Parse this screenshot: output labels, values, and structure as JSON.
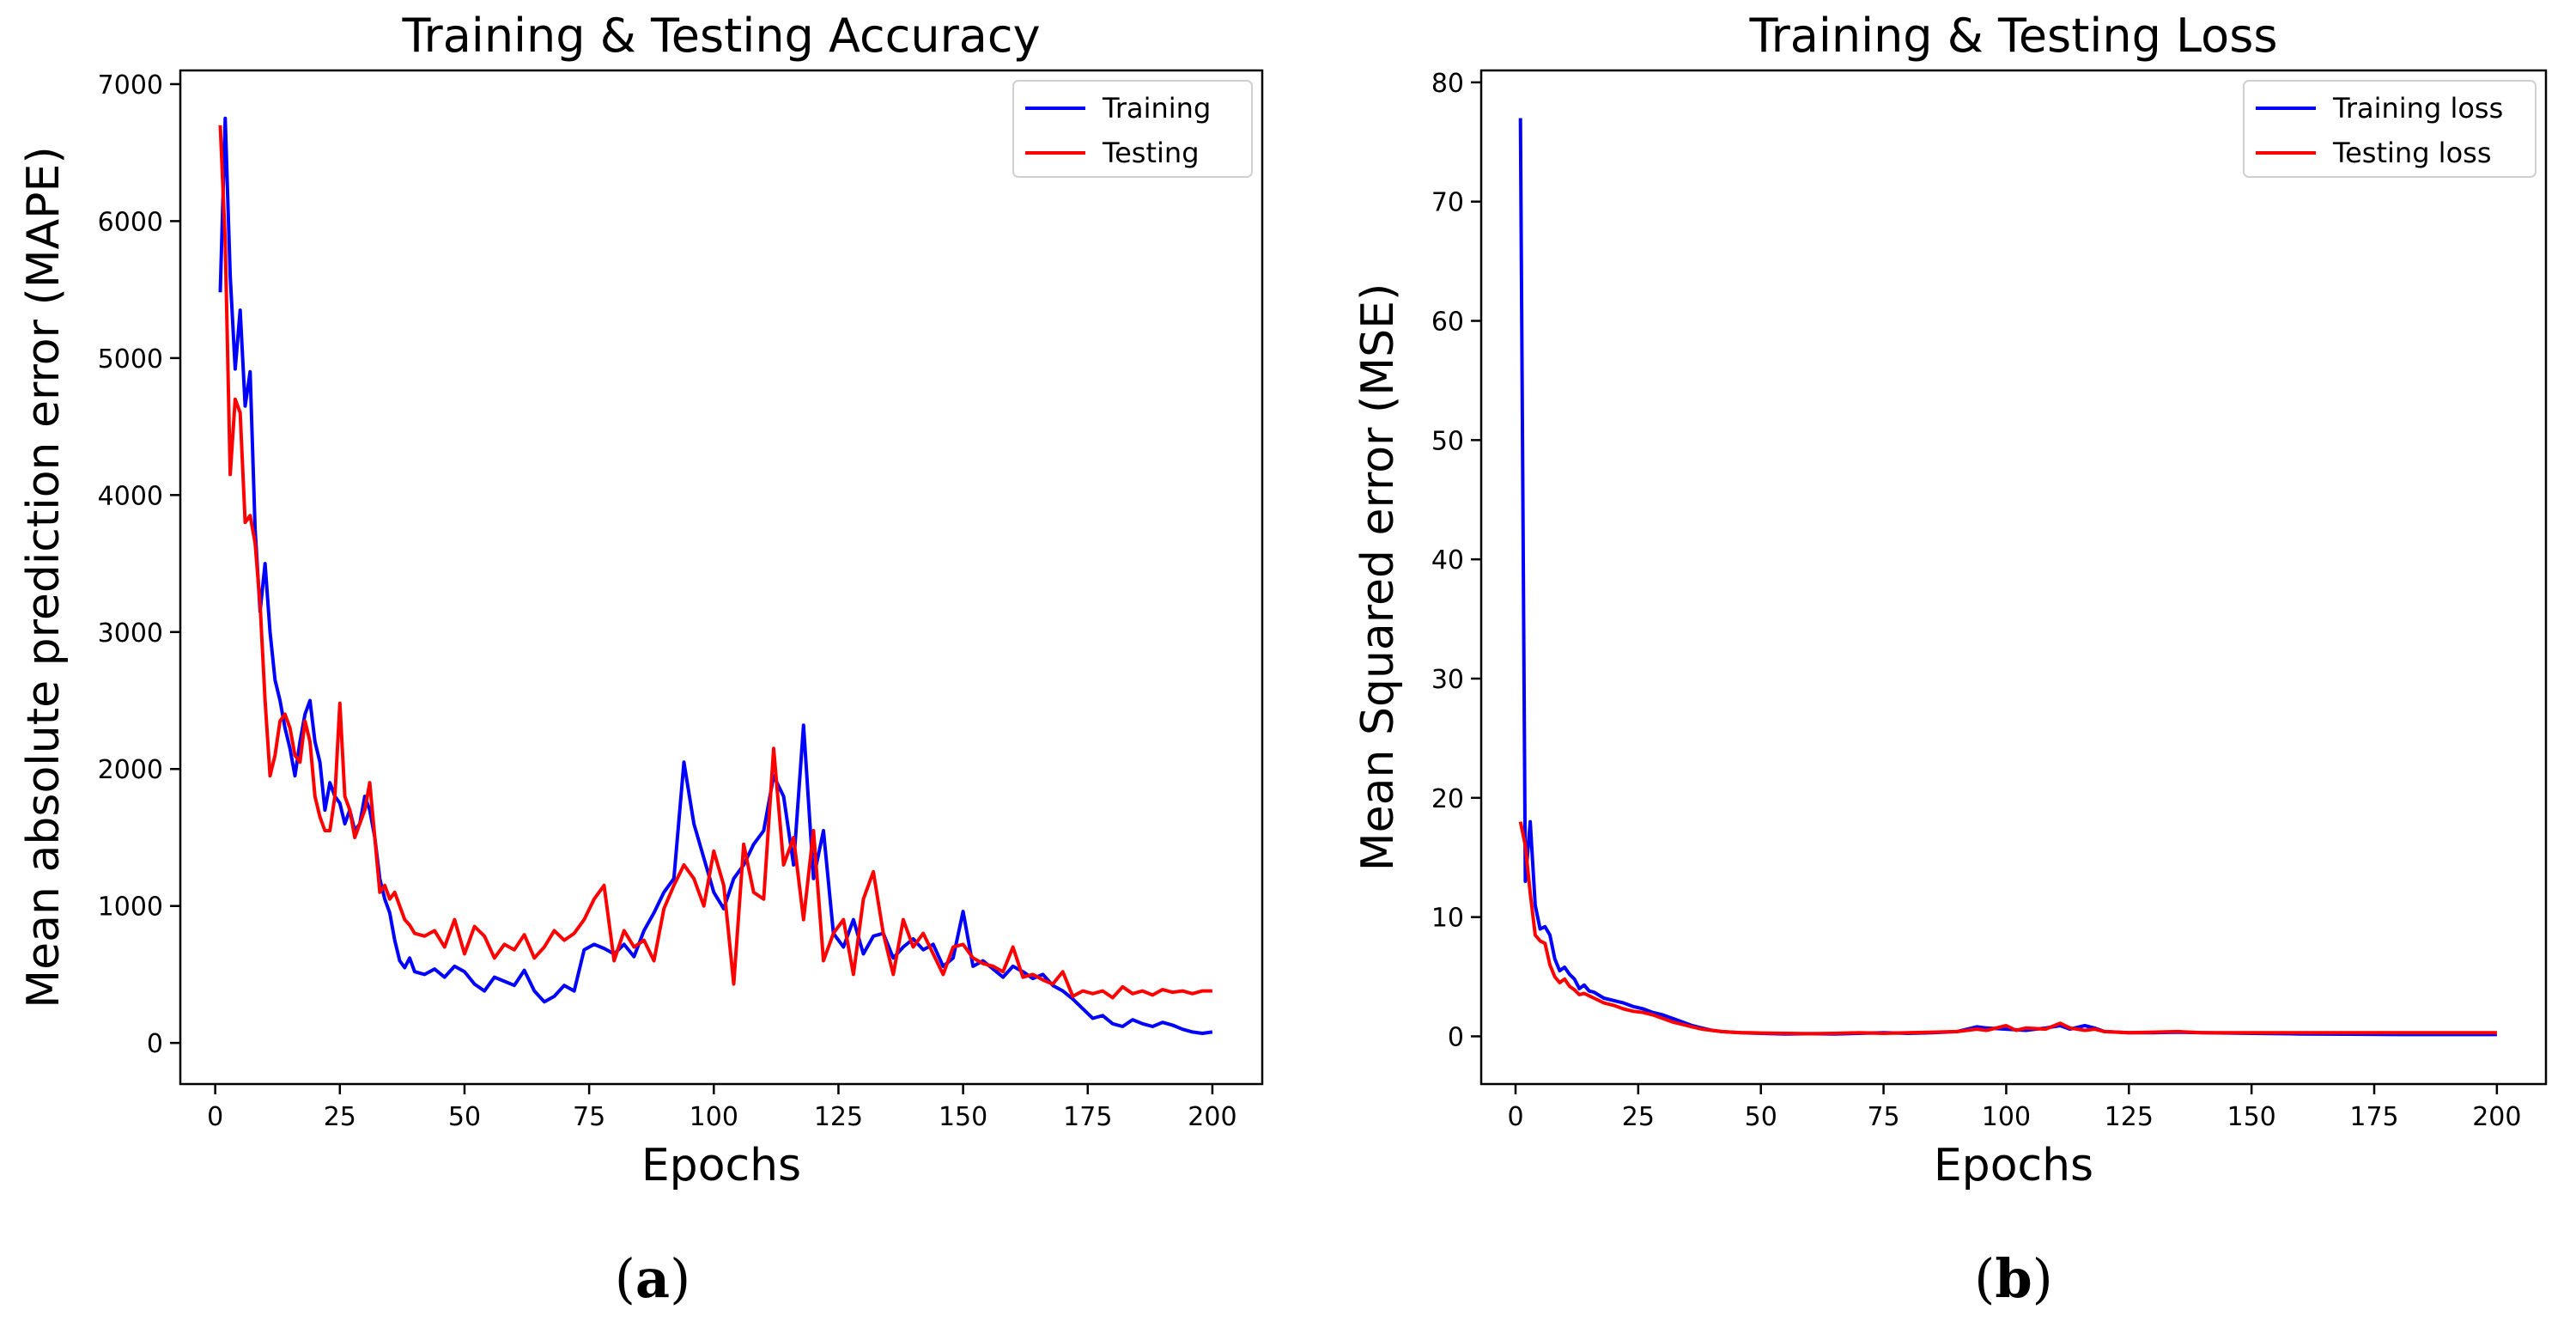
{
  "chart_data": [
    {
      "type": "line",
      "title": "Training & Testing Accuracy",
      "xlabel": "Epochs",
      "ylabel": "Mean absolute prediction error (MAPE)",
      "xlim": [
        -7,
        210
      ],
      "ylim": [
        -300,
        7100
      ],
      "xticks": [
        0,
        25,
        50,
        75,
        100,
        125,
        150,
        175,
        200
      ],
      "yticks": [
        0,
        1000,
        2000,
        3000,
        4000,
        5000,
        6000,
        7000
      ],
      "legend_position": "top-right",
      "panel_label": "a",
      "series": [
        {
          "name": "Training",
          "color": "#0000ff",
          "x": [
            1,
            2,
            3,
            4,
            5,
            6,
            7,
            8,
            9,
            10,
            11,
            12,
            13,
            14,
            15,
            16,
            17,
            18,
            19,
            20,
            21,
            22,
            23,
            24,
            25,
            26,
            27,
            28,
            29,
            30,
            31,
            32,
            33,
            34,
            35,
            36,
            37,
            38,
            39,
            40,
            42,
            44,
            46,
            48,
            50,
            52,
            54,
            56,
            58,
            60,
            62,
            64,
            66,
            68,
            70,
            72,
            74,
            76,
            78,
            80,
            82,
            84,
            86,
            88,
            90,
            92,
            94,
            96,
            98,
            100,
            102,
            104,
            106,
            108,
            110,
            112,
            114,
            116,
            118,
            120,
            122,
            124,
            126,
            128,
            130,
            132,
            134,
            136,
            138,
            140,
            142,
            144,
            146,
            148,
            150,
            152,
            154,
            156,
            158,
            160,
            162,
            164,
            166,
            168,
            170,
            172,
            174,
            176,
            178,
            180,
            182,
            184,
            186,
            188,
            190,
            192,
            194,
            196,
            198,
            200
          ],
          "y": [
            5480,
            6750,
            5600,
            4920,
            5350,
            4650,
            4900,
            3750,
            3150,
            3500,
            3000,
            2650,
            2500,
            2300,
            2150,
            1950,
            2200,
            2400,
            2500,
            2200,
            2050,
            1700,
            1900,
            1800,
            1750,
            1600,
            1700,
            1550,
            1600,
            1800,
            1700,
            1500,
            1200,
            1050,
            950,
            750,
            600,
            550,
            620,
            520,
            500,
            540,
            480,
            560,
            520,
            430,
            380,
            480,
            450,
            420,
            530,
            380,
            300,
            340,
            420,
            380,
            680,
            720,
            690,
            650,
            720,
            630,
            820,
            950,
            1100,
            1200,
            2050,
            1600,
            1350,
            1100,
            980,
            1200,
            1300,
            1450,
            1550,
            1950,
            1800,
            1300,
            2320,
            1200,
            1550,
            800,
            700,
            900,
            650,
            780,
            800,
            620,
            700,
            760,
            680,
            720,
            560,
            620,
            960,
            560,
            600,
            540,
            480,
            560,
            520,
            470,
            500,
            420,
            380,
            320,
            250,
            180,
            200,
            140,
            120,
            170,
            140,
            120,
            150,
            130,
            100,
            80,
            70,
            80
          ]
        },
        {
          "name": "Testing",
          "color": "#ff0000",
          "x": [
            1,
            2,
            3,
            4,
            5,
            6,
            7,
            8,
            9,
            10,
            11,
            12,
            13,
            14,
            15,
            16,
            17,
            18,
            19,
            20,
            21,
            22,
            23,
            24,
            25,
            26,
            27,
            28,
            29,
            30,
            31,
            32,
            33,
            34,
            35,
            36,
            37,
            38,
            39,
            40,
            42,
            44,
            46,
            48,
            50,
            52,
            54,
            56,
            58,
            60,
            62,
            64,
            66,
            68,
            70,
            72,
            74,
            76,
            78,
            80,
            82,
            84,
            86,
            88,
            90,
            92,
            94,
            96,
            98,
            100,
            102,
            104,
            106,
            108,
            110,
            112,
            114,
            116,
            118,
            120,
            122,
            124,
            126,
            128,
            130,
            132,
            134,
            136,
            138,
            140,
            142,
            144,
            146,
            148,
            150,
            152,
            154,
            156,
            158,
            160,
            162,
            164,
            166,
            168,
            170,
            172,
            174,
            176,
            178,
            180,
            182,
            184,
            186,
            188,
            190,
            192,
            194,
            196,
            198,
            200
          ],
          "y": [
            6700,
            5850,
            4150,
            4700,
            4600,
            3800,
            3850,
            3650,
            3200,
            2500,
            1950,
            2100,
            2350,
            2400,
            2300,
            2100,
            2050,
            2350,
            2200,
            1800,
            1650,
            1550,
            1550,
            1800,
            2480,
            1800,
            1700,
            1500,
            1600,
            1700,
            1900,
            1500,
            1100,
            1150,
            1050,
            1100,
            1000,
            900,
            860,
            800,
            780,
            820,
            700,
            900,
            650,
            850,
            780,
            620,
            720,
            680,
            790,
            620,
            700,
            820,
            750,
            800,
            900,
            1050,
            1150,
            600,
            820,
            700,
            750,
            600,
            980,
            1150,
            1300,
            1200,
            1000,
            1400,
            1150,
            430,
            1450,
            1100,
            1050,
            2150,
            1300,
            1500,
            900,
            1550,
            600,
            800,
            900,
            500,
            1050,
            1250,
            800,
            500,
            900,
            700,
            800,
            650,
            500,
            700,
            720,
            620,
            580,
            560,
            520,
            700,
            480,
            500,
            460,
            430,
            520,
            340,
            380,
            360,
            380,
            330,
            410,
            360,
            380,
            350,
            390,
            370,
            380,
            360,
            380,
            380
          ]
        }
      ]
    },
    {
      "type": "line",
      "title": "Training & Testing  Loss",
      "xlabel": "Epochs",
      "ylabel": "Mean Squared error (MSE)",
      "xlim": [
        -7,
        210
      ],
      "ylim": [
        -4,
        81
      ],
      "xticks": [
        0,
        25,
        50,
        75,
        100,
        125,
        150,
        175,
        200
      ],
      "yticks": [
        0,
        10,
        20,
        30,
        40,
        50,
        60,
        70,
        80
      ],
      "legend_position": "top-right",
      "panel_label": "b",
      "series": [
        {
          "name": "Training loss",
          "color": "#0000ff",
          "x": [
            1,
            2,
            3,
            4,
            5,
            6,
            7,
            8,
            9,
            10,
            11,
            12,
            13,
            14,
            15,
            16,
            18,
            20,
            22,
            24,
            26,
            28,
            30,
            32,
            34,
            36,
            38,
            40,
            42,
            44,
            46,
            48,
            50,
            55,
            60,
            65,
            70,
            75,
            80,
            85,
            90,
            94,
            96,
            100,
            104,
            108,
            111,
            113,
            116,
            118,
            120,
            125,
            130,
            135,
            140,
            150,
            160,
            170,
            180,
            190,
            200
          ],
          "y": [
            77,
            13,
            18,
            11,
            9,
            9.2,
            8.5,
            6.5,
            5.5,
            5.8,
            5.2,
            4.8,
            4.0,
            4.3,
            3.8,
            3.7,
            3.2,
            3.0,
            2.8,
            2.5,
            2.3,
            2.0,
            1.8,
            1.5,
            1.2,
            0.9,
            0.7,
            0.5,
            0.4,
            0.35,
            0.3,
            0.28,
            0.25,
            0.2,
            0.22,
            0.2,
            0.25,
            0.3,
            0.25,
            0.3,
            0.4,
            0.8,
            0.7,
            0.6,
            0.5,
            0.7,
            0.9,
            0.6,
            0.9,
            0.7,
            0.4,
            0.3,
            0.3,
            0.35,
            0.3,
            0.25,
            0.2,
            0.18,
            0.15,
            0.15,
            0.15
          ]
        },
        {
          "name": "Testing loss",
          "color": "#ff0000",
          "x": [
            1,
            2,
            3,
            4,
            5,
            6,
            7,
            8,
            9,
            10,
            11,
            12,
            13,
            14,
            15,
            16,
            18,
            20,
            22,
            24,
            26,
            28,
            30,
            32,
            34,
            36,
            38,
            40,
            42,
            44,
            46,
            48,
            50,
            55,
            60,
            65,
            70,
            75,
            80,
            85,
            90,
            94,
            96,
            100,
            102,
            104,
            108,
            111,
            113,
            116,
            118,
            120,
            125,
            130,
            135,
            140,
            150,
            160,
            170,
            180,
            190,
            200
          ],
          "y": [
            18,
            16,
            12,
            8.5,
            8.0,
            7.8,
            6.0,
            5.0,
            4.5,
            4.8,
            4.2,
            3.9,
            3.5,
            3.6,
            3.4,
            3.2,
            2.8,
            2.6,
            2.3,
            2.1,
            2.0,
            1.8,
            1.5,
            1.2,
            1.0,
            0.8,
            0.6,
            0.5,
            0.4,
            0.35,
            0.3,
            0.3,
            0.28,
            0.25,
            0.22,
            0.25,
            0.3,
            0.25,
            0.3,
            0.35,
            0.4,
            0.6,
            0.5,
            0.9,
            0.5,
            0.7,
            0.6,
            1.1,
            0.7,
            0.5,
            0.6,
            0.4,
            0.3,
            0.35,
            0.4,
            0.3,
            0.3,
            0.3,
            0.3,
            0.3,
            0.3,
            0.3
          ]
        }
      ]
    }
  ]
}
